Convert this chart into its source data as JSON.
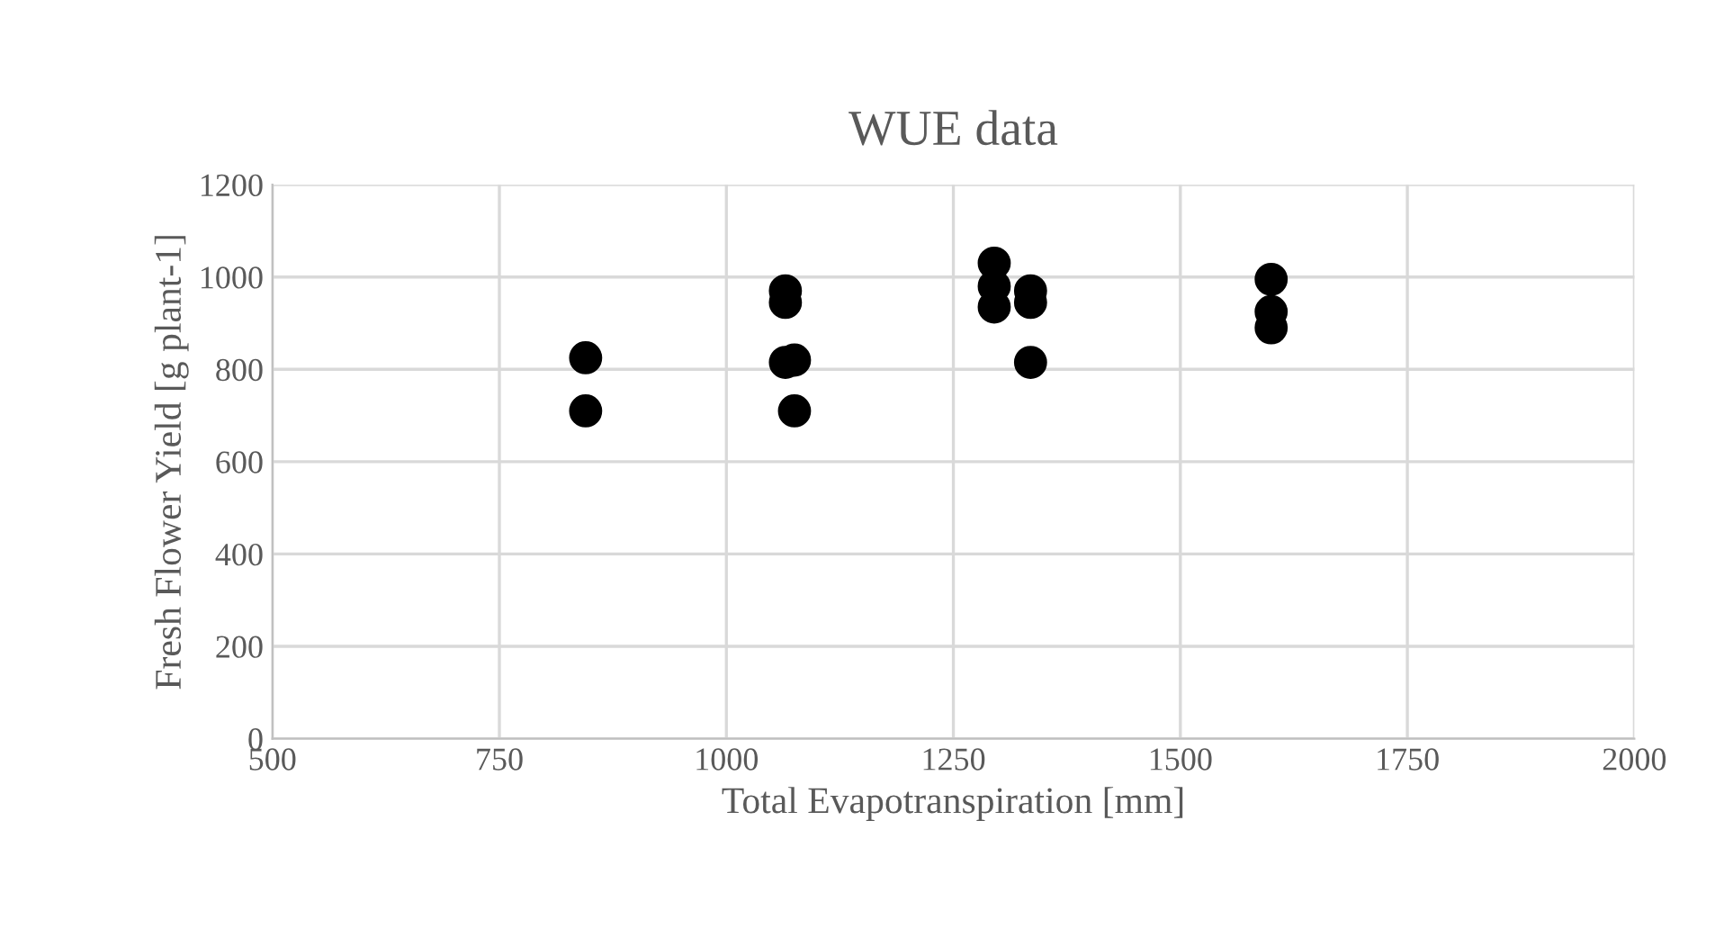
{
  "chart_data": {
    "type": "scatter",
    "title": "WUE data",
    "xlabel": "Total Evapotranspiration [mm]",
    "ylabel": "Fresh Flower Yield [g plant-1]",
    "series": [
      {
        "color": "#000000",
        "x": [
          845,
          845,
          1065,
          1065,
          1065,
          1075,
          1075,
          1295,
          1295,
          1295,
          1335,
          1335,
          1335,
          1600,
          1600,
          1600
        ],
        "values": [
          825,
          710,
          970,
          945,
          815,
          820,
          710,
          1030,
          980,
          935,
          970,
          945,
          815,
          995,
          925,
          890
        ]
      }
    ],
    "xlim": [
      500,
      2000
    ],
    "xticks": [
      500,
      750,
      1000,
      1250,
      1500,
      1750,
      2000
    ],
    "ylim": [
      0,
      1200
    ],
    "yticks": [
      0,
      200,
      400,
      600,
      800,
      1000,
      1200
    ],
    "grid": true,
    "marker": "circle",
    "legend": false
  }
}
